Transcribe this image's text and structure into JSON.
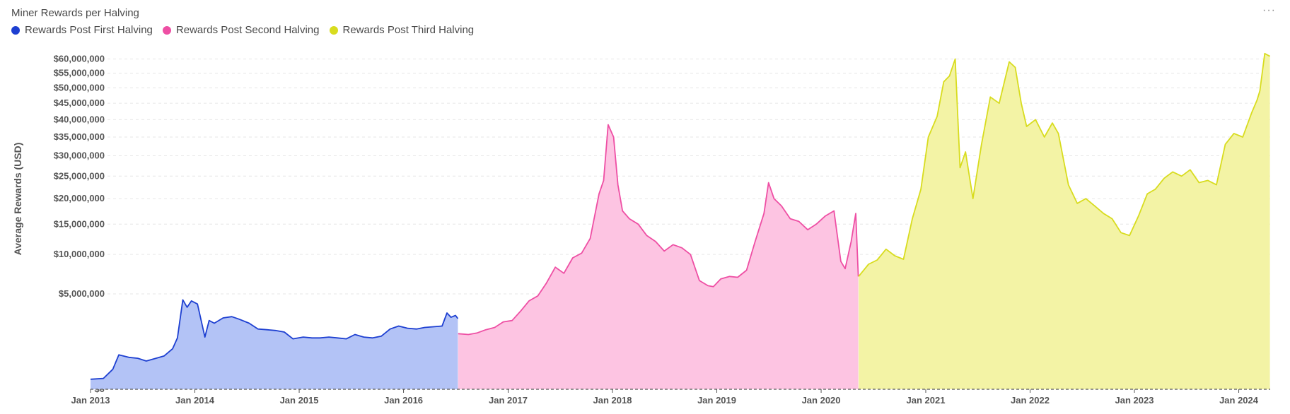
{
  "header": {
    "title": "Miner Rewards per Halving",
    "menu_icon": "more-horizontal-icon",
    "menu_label": "···"
  },
  "legend": [
    {
      "name": "Rewards Post First Halving",
      "color": "#1d3fd1"
    },
    {
      "name": "Rewards Post Second Halving",
      "color": "#ee4fa4"
    },
    {
      "name": "Rewards Post Third Halving",
      "color": "#d8dc1e"
    }
  ],
  "chart_data": {
    "type": "area",
    "title": "Miner Rewards per Halving",
    "xlabel": "",
    "ylabel": "Average Rewards (USD)",
    "y_scale": "sqrt",
    "ylim": [
      0,
      63000000
    ],
    "xlim": [
      "2013-01-01",
      "2024-04-20"
    ],
    "y_ticks": [
      0,
      5000000,
      10000000,
      15000000,
      20000000,
      25000000,
      30000000,
      35000000,
      40000000,
      45000000,
      50000000,
      55000000,
      60000000
    ],
    "y_tick_labels": [
      "$0",
      "$5,000,000",
      "$10,000,000",
      "$15,000,000",
      "$20,000,000",
      "$25,000,000",
      "$30,000,000",
      "$35,000,000",
      "$40,000,000",
      "$45,000,000",
      "$50,000,000",
      "$55,000,000",
      "$60,000,000"
    ],
    "x_tick_labels": [
      "Jan 2013",
      "Jan 2014",
      "Jan 2015",
      "Jan 2016",
      "Jan 2017",
      "Jan 2018",
      "Jan 2019",
      "Jan 2020",
      "Jan 2021",
      "Jan 2022",
      "Jan 2023",
      "Jan 2024"
    ],
    "x_ticks": [
      "2013-01-01",
      "2014-01-01",
      "2015-01-01",
      "2016-01-01",
      "2017-01-01",
      "2018-01-01",
      "2019-01-01",
      "2020-01-01",
      "2021-01-01",
      "2022-01-01",
      "2023-01-01",
      "2024-01-01"
    ],
    "grid": "horizontal dashed",
    "legend_position": "top-left",
    "series": [
      {
        "name": "Rewards Post First Halving",
        "color": "#1d3fd1",
        "fill": "#b3c3f6",
        "x": [
          "2013-01-01",
          "2013-02-15",
          "2013-03-20",
          "2013-04-10",
          "2013-05-15",
          "2013-06-15",
          "2013-07-15",
          "2013-08-15",
          "2013-09-15",
          "2013-10-15",
          "2013-11-01",
          "2013-11-20",
          "2013-12-05",
          "2013-12-20",
          "2014-01-10",
          "2014-02-05",
          "2014-02-20",
          "2014-03-10",
          "2014-04-10",
          "2014-05-10",
          "2014-06-05",
          "2014-07-10",
          "2014-08-10",
          "2014-09-10",
          "2014-10-10",
          "2014-11-10",
          "2014-12-10",
          "2015-01-15",
          "2015-02-15",
          "2015-03-15",
          "2015-04-15",
          "2015-05-15",
          "2015-06-15",
          "2015-07-15",
          "2015-08-15",
          "2015-09-15",
          "2015-10-15",
          "2015-11-15",
          "2015-12-15",
          "2016-01-15",
          "2016-02-15",
          "2016-03-15",
          "2016-04-15",
          "2016-05-15",
          "2016-06-01",
          "2016-06-15",
          "2016-07-01",
          "2016-07-09"
        ],
        "values": [
          55000,
          65000,
          220000,
          650000,
          560000,
          530000,
          440000,
          520000,
          610000,
          900000,
          1450000,
          4400000,
          3700000,
          4300000,
          4000000,
          1500000,
          2600000,
          2400000,
          2800000,
          2900000,
          2700000,
          2400000,
          2000000,
          1950000,
          1900000,
          1800000,
          1400000,
          1500000,
          1450000,
          1450000,
          1500000,
          1450000,
          1400000,
          1650000,
          1500000,
          1450000,
          1550000,
          2000000,
          2200000,
          2050000,
          2000000,
          2100000,
          2150000,
          2200000,
          3200000,
          2850000,
          3000000,
          2750000
        ]
      },
      {
        "name": "Rewards Post Second Halving",
        "color": "#ee4fa4",
        "fill": "#fdc4e2",
        "x": [
          "2016-07-10",
          "2016-08-15",
          "2016-09-15",
          "2016-10-15",
          "2016-11-15",
          "2016-12-15",
          "2017-01-15",
          "2017-02-15",
          "2017-03-15",
          "2017-04-15",
          "2017-05-15",
          "2017-06-15",
          "2017-07-15",
          "2017-08-15",
          "2017-09-15",
          "2017-10-15",
          "2017-11-15",
          "2017-12-01",
          "2017-12-17",
          "2018-01-05",
          "2018-01-20",
          "2018-02-05",
          "2018-03-01",
          "2018-04-01",
          "2018-05-01",
          "2018-06-01",
          "2018-07-01",
          "2018-08-01",
          "2018-09-01",
          "2018-10-01",
          "2018-11-01",
          "2018-12-01",
          "2018-12-20",
          "2019-01-15",
          "2019-02-15",
          "2019-03-15",
          "2019-04-15",
          "2019-05-15",
          "2019-06-15",
          "2019-07-01",
          "2019-07-20",
          "2019-08-15",
          "2019-09-15",
          "2019-10-15",
          "2019-11-15",
          "2019-12-15",
          "2020-01-15",
          "2020-02-15",
          "2020-03-10",
          "2020-03-25",
          "2020-04-15",
          "2020-05-01",
          "2020-05-10"
        ],
        "values": [
          1700000,
          1650000,
          1750000,
          1950000,
          2100000,
          2500000,
          2600000,
          3400000,
          4300000,
          4800000,
          6200000,
          8200000,
          7400000,
          9500000,
          10200000,
          12500000,
          21000000,
          24000000,
          38500000,
          35000000,
          23000000,
          17500000,
          16000000,
          15000000,
          13000000,
          12000000,
          10500000,
          11500000,
          11000000,
          10000000,
          6500000,
          5900000,
          5800000,
          6700000,
          7000000,
          6900000,
          7800000,
          12000000,
          17000000,
          23500000,
          20000000,
          18500000,
          16000000,
          15500000,
          14000000,
          15000000,
          16500000,
          17500000,
          9000000,
          8000000,
          12000000,
          17000000,
          7000000
        ]
      },
      {
        "name": "Rewards Post Third Halving",
        "color": "#d8dc1e",
        "fill": "#f3f3a5",
        "x": [
          "2020-05-11",
          "2020-06-15",
          "2020-07-15",
          "2020-08-15",
          "2020-09-15",
          "2020-10-15",
          "2020-11-15",
          "2020-12-15",
          "2021-01-10",
          "2021-02-10",
          "2021-03-05",
          "2021-03-25",
          "2021-04-14",
          "2021-05-01",
          "2021-05-20",
          "2021-06-15",
          "2021-07-15",
          "2021-08-15",
          "2021-09-15",
          "2021-10-20",
          "2021-11-10",
          "2021-12-01",
          "2021-12-20",
          "2022-01-20",
          "2022-02-20",
          "2022-03-20",
          "2022-04-10",
          "2022-05-15",
          "2022-06-15",
          "2022-07-15",
          "2022-08-15",
          "2022-09-15",
          "2022-10-15",
          "2022-11-15",
          "2022-12-15",
          "2023-01-15",
          "2023-02-15",
          "2023-03-15",
          "2023-04-15",
          "2023-05-15",
          "2023-06-15",
          "2023-07-15",
          "2023-08-15",
          "2023-09-15",
          "2023-10-15",
          "2023-11-15",
          "2023-12-15",
          "2024-01-15",
          "2024-02-15",
          "2024-03-05",
          "2024-03-15",
          "2024-04-01",
          "2024-04-19"
        ],
        "values": [
          7000000,
          8600000,
          9200000,
          10800000,
          9800000,
          9300000,
          16000000,
          22000000,
          35000000,
          41000000,
          52000000,
          54000000,
          60000000,
          27000000,
          31000000,
          20000000,
          33000000,
          47000000,
          45000000,
          59000000,
          57000000,
          45000000,
          38000000,
          40000000,
          35000000,
          39000000,
          36000000,
          23000000,
          19000000,
          20000000,
          18500000,
          17000000,
          16000000,
          13500000,
          13000000,
          16500000,
          21000000,
          22000000,
          24500000,
          26000000,
          25000000,
          26500000,
          23500000,
          24000000,
          23000000,
          33000000,
          36000000,
          35000000,
          42000000,
          46000000,
          49000000,
          62000000,
          61000000
        ]
      }
    ]
  }
}
